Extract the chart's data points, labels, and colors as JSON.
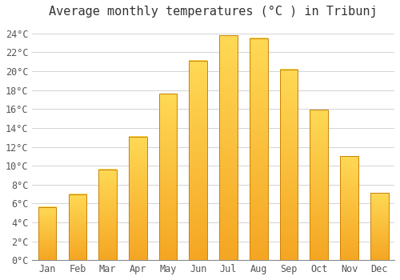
{
  "title": "Average monthly temperatures (°C ) in Tribunj",
  "months": [
    "Jan",
    "Feb",
    "Mar",
    "Apr",
    "May",
    "Jun",
    "Jul",
    "Aug",
    "Sep",
    "Oct",
    "Nov",
    "Dec"
  ],
  "temperatures": [
    5.6,
    7.0,
    9.6,
    13.1,
    17.6,
    21.1,
    23.8,
    23.5,
    20.2,
    15.9,
    11.0,
    7.1
  ],
  "bar_color_bottom": "#F5A623",
  "bar_color_top": "#FFD966",
  "bar_edge_color": "#C8820A",
  "background_color": "#FFFFFF",
  "grid_color": "#CCCCCC",
  "ylim": [
    0,
    25
  ],
  "ytick_step": 2,
  "title_fontsize": 11,
  "tick_fontsize": 8.5,
  "font_family": "monospace"
}
